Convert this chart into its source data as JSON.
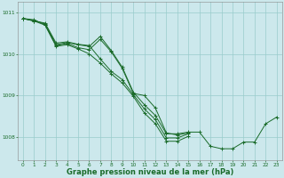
{
  "background_color": "#cce8ec",
  "grid_color": "#99cccc",
  "line_color": "#1a6b2a",
  "marker_color": "#1a6b2a",
  "xlabel": "Graphe pression niveau de la mer (hPa)",
  "xlabel_fontsize": 6,
  "ytick_labels": [
    "1008",
    "1009",
    "1010",
    "1011"
  ],
  "yticks": [
    1008,
    1009,
    1010,
    1011
  ],
  "xticks": [
    0,
    1,
    2,
    3,
    4,
    5,
    6,
    7,
    8,
    9,
    10,
    11,
    12,
    13,
    14,
    15,
    16,
    17,
    18,
    19,
    20,
    21,
    22,
    23
  ],
  "ylim": [
    1007.45,
    1011.25
  ],
  "xlim": [
    -0.5,
    23.5
  ],
  "series": [
    [
      1010.85,
      1010.82,
      1010.7,
      1010.2,
      1010.25,
      1010.15,
      1010.1,
      1010.35,
      1010.05,
      1009.65,
      1009.05,
      1009.0,
      1008.7,
      1008.1,
      1008.05,
      1008.1,
      null,
      null,
      null,
      null,
      null,
      null,
      null,
      null
    ],
    [
      1010.85,
      1010.8,
      1010.72,
      1010.22,
      1010.27,
      1010.22,
      1010.18,
      1010.42,
      1010.08,
      1009.68,
      1009.08,
      1008.78,
      1008.52,
      1008.08,
      1008.08,
      1008.12,
      1008.12,
      1007.78,
      1007.72,
      1007.72,
      1007.88,
      1007.88,
      1008.32,
      1008.48
    ],
    [
      1010.85,
      1010.79,
      1010.74,
      1010.26,
      1010.29,
      1010.23,
      1010.2,
      1009.88,
      1009.58,
      1009.38,
      1009.02,
      1008.68,
      1008.42,
      1007.98,
      1007.98,
      1008.08,
      null,
      null,
      null,
      null,
      null,
      null,
      null,
      null
    ],
    [
      1010.85,
      1010.79,
      1010.69,
      1010.18,
      1010.22,
      1010.12,
      1010.0,
      1009.78,
      1009.52,
      1009.3,
      1008.98,
      1008.58,
      1008.32,
      1007.9,
      1007.9,
      1008.02,
      null,
      null,
      null,
      null,
      null,
      null,
      null,
      null
    ]
  ]
}
